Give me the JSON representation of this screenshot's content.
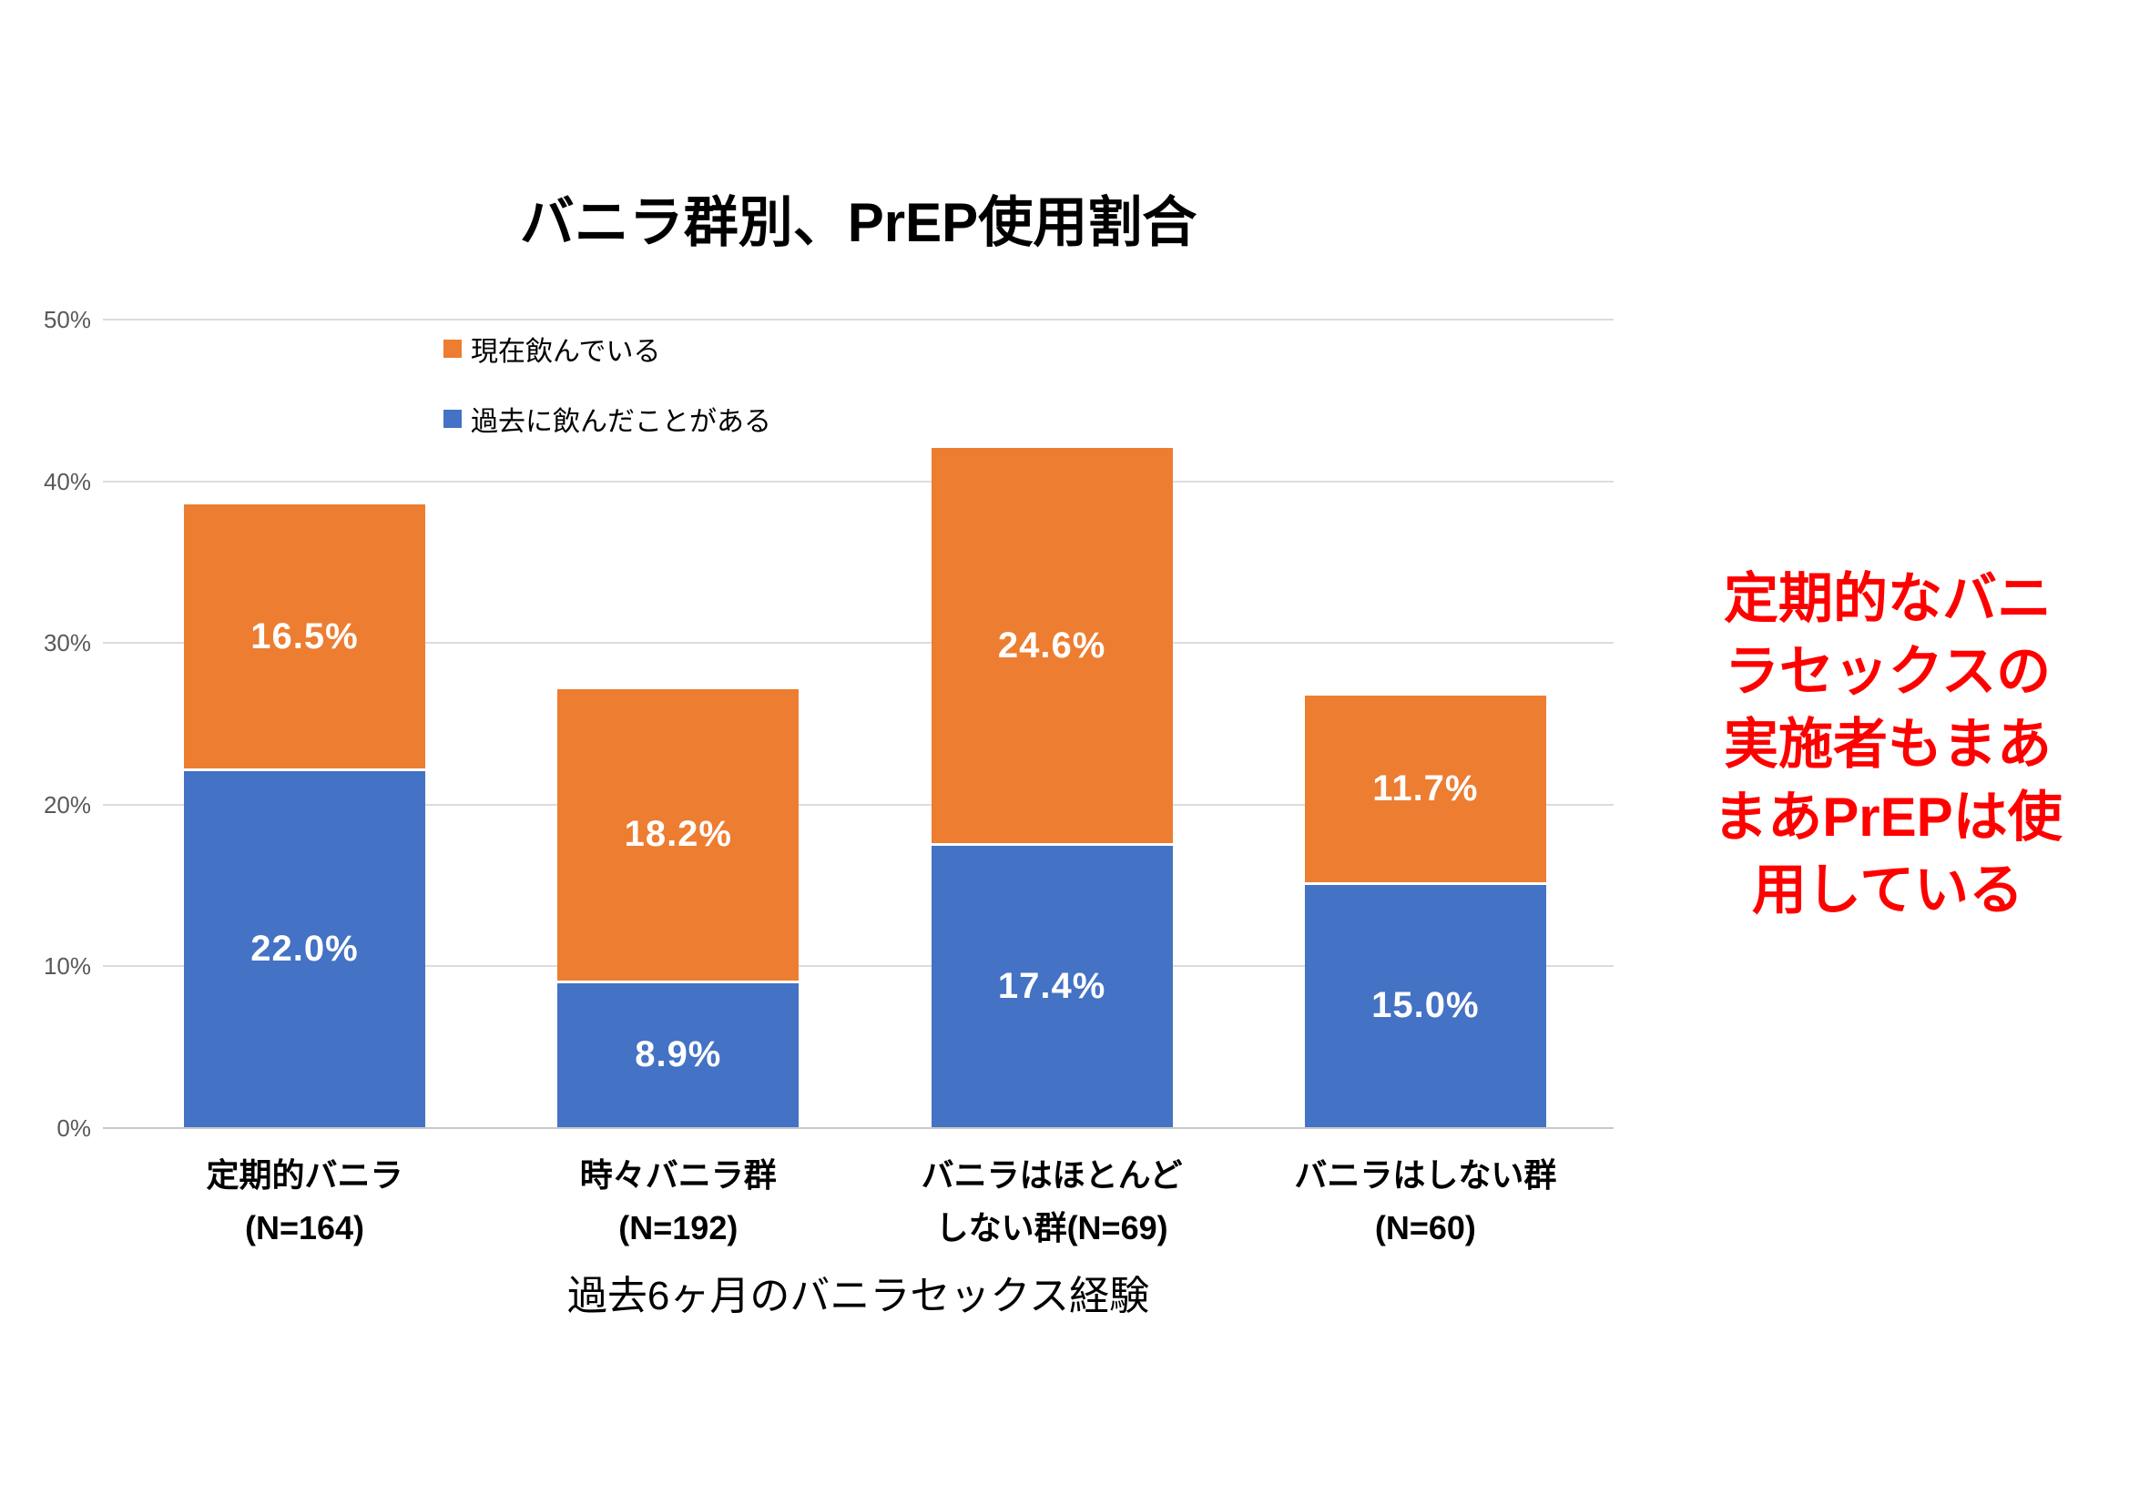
{
  "chart_data": {
    "type": "bar",
    "stacked": true,
    "title": "バニラ群別、PrEP使用割合",
    "categories": [
      "定期的バニラ\n(N=164)",
      "時々バニラ群\n(N=192)",
      "バニラはほとんど\nしない群(N=69)",
      "バニラはしない群\n(N=60)"
    ],
    "series": [
      {
        "name": "過去に飲んだことがある",
        "color": "#4472C4",
        "values": [
          22.0,
          8.9,
          17.4,
          15.0
        ],
        "labels": [
          "22.0%",
          "8.9%",
          "17.4%",
          "15.0%"
        ]
      },
      {
        "name": "現在飲んでいる",
        "color": "#ED7D31",
        "values": [
          16.5,
          18.2,
          24.6,
          11.7
        ],
        "labels": [
          "16.5%",
          "18.2%",
          "24.6%",
          "11.7%"
        ]
      }
    ],
    "totals": [
      38.5,
      27.1,
      42.0,
      26.7
    ],
    "xlabel": "過去6ヶ月のバニラセックス経験",
    "ylabel": "",
    "ylim": [
      0,
      50
    ],
    "yticks": [
      "0%",
      "10%",
      "20%",
      "30%",
      "40%",
      "50%"
    ],
    "grid": true,
    "legend_position": "top-left-inside",
    "colors": {
      "gridline": "#DCDCDC",
      "axis_line": "#C8C8C8",
      "tick_text": "#595959",
      "segment_label_text": "#FFFFFF",
      "title_text": "#000000"
    }
  },
  "annotation": {
    "lines": [
      "定期的なバニ",
      "ラセックスの",
      "実施者もまあ",
      "まあPrEPは使",
      "用している"
    ],
    "color": "#FF0000"
  }
}
